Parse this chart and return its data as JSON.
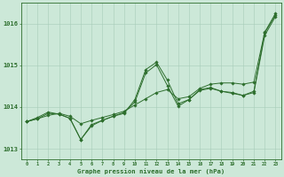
{
  "title": "Graphe pression niveau de la mer (hPa)",
  "bg_color": "#cce8d8",
  "grid_color": "#a8ccb8",
  "line_color": "#2d6e2d",
  "xlim": [
    -0.5,
    23.5
  ],
  "ylim": [
    1012.75,
    1016.5
  ],
  "yticks": [
    1013,
    1014,
    1015,
    1016
  ],
  "xticks": [
    0,
    1,
    2,
    3,
    4,
    5,
    6,
    7,
    8,
    9,
    10,
    11,
    12,
    13,
    14,
    15,
    16,
    17,
    18,
    19,
    20,
    21,
    22,
    23
  ],
  "series_smooth": [
    1013.65,
    1013.72,
    1013.8,
    1013.85,
    1013.78,
    1013.6,
    1013.68,
    1013.75,
    1013.82,
    1013.9,
    1014.05,
    1014.2,
    1014.35,
    1014.42,
    1014.2,
    1014.25,
    1014.45,
    1014.55,
    1014.58,
    1014.58,
    1014.55,
    1014.6,
    1015.8,
    1016.25
  ],
  "series_detail": [
    1013.65,
    1013.75,
    1013.88,
    1013.83,
    1013.73,
    1013.22,
    1013.55,
    1013.68,
    1013.78,
    1013.85,
    1014.18,
    1014.9,
    1015.08,
    1014.65,
    1014.08,
    1014.18,
    1014.42,
    1014.47,
    1014.38,
    1014.35,
    1014.28,
    1014.38,
    1015.78,
    1016.22
  ],
  "series_mid": [
    1013.65,
    1013.72,
    1013.85,
    1013.83,
    1013.73,
    1013.22,
    1013.58,
    1013.68,
    1013.78,
    1013.87,
    1014.12,
    1014.82,
    1015.02,
    1014.52,
    1014.02,
    1014.18,
    1014.4,
    1014.45,
    1014.38,
    1014.33,
    1014.28,
    1014.35,
    1015.72,
    1016.18
  ]
}
